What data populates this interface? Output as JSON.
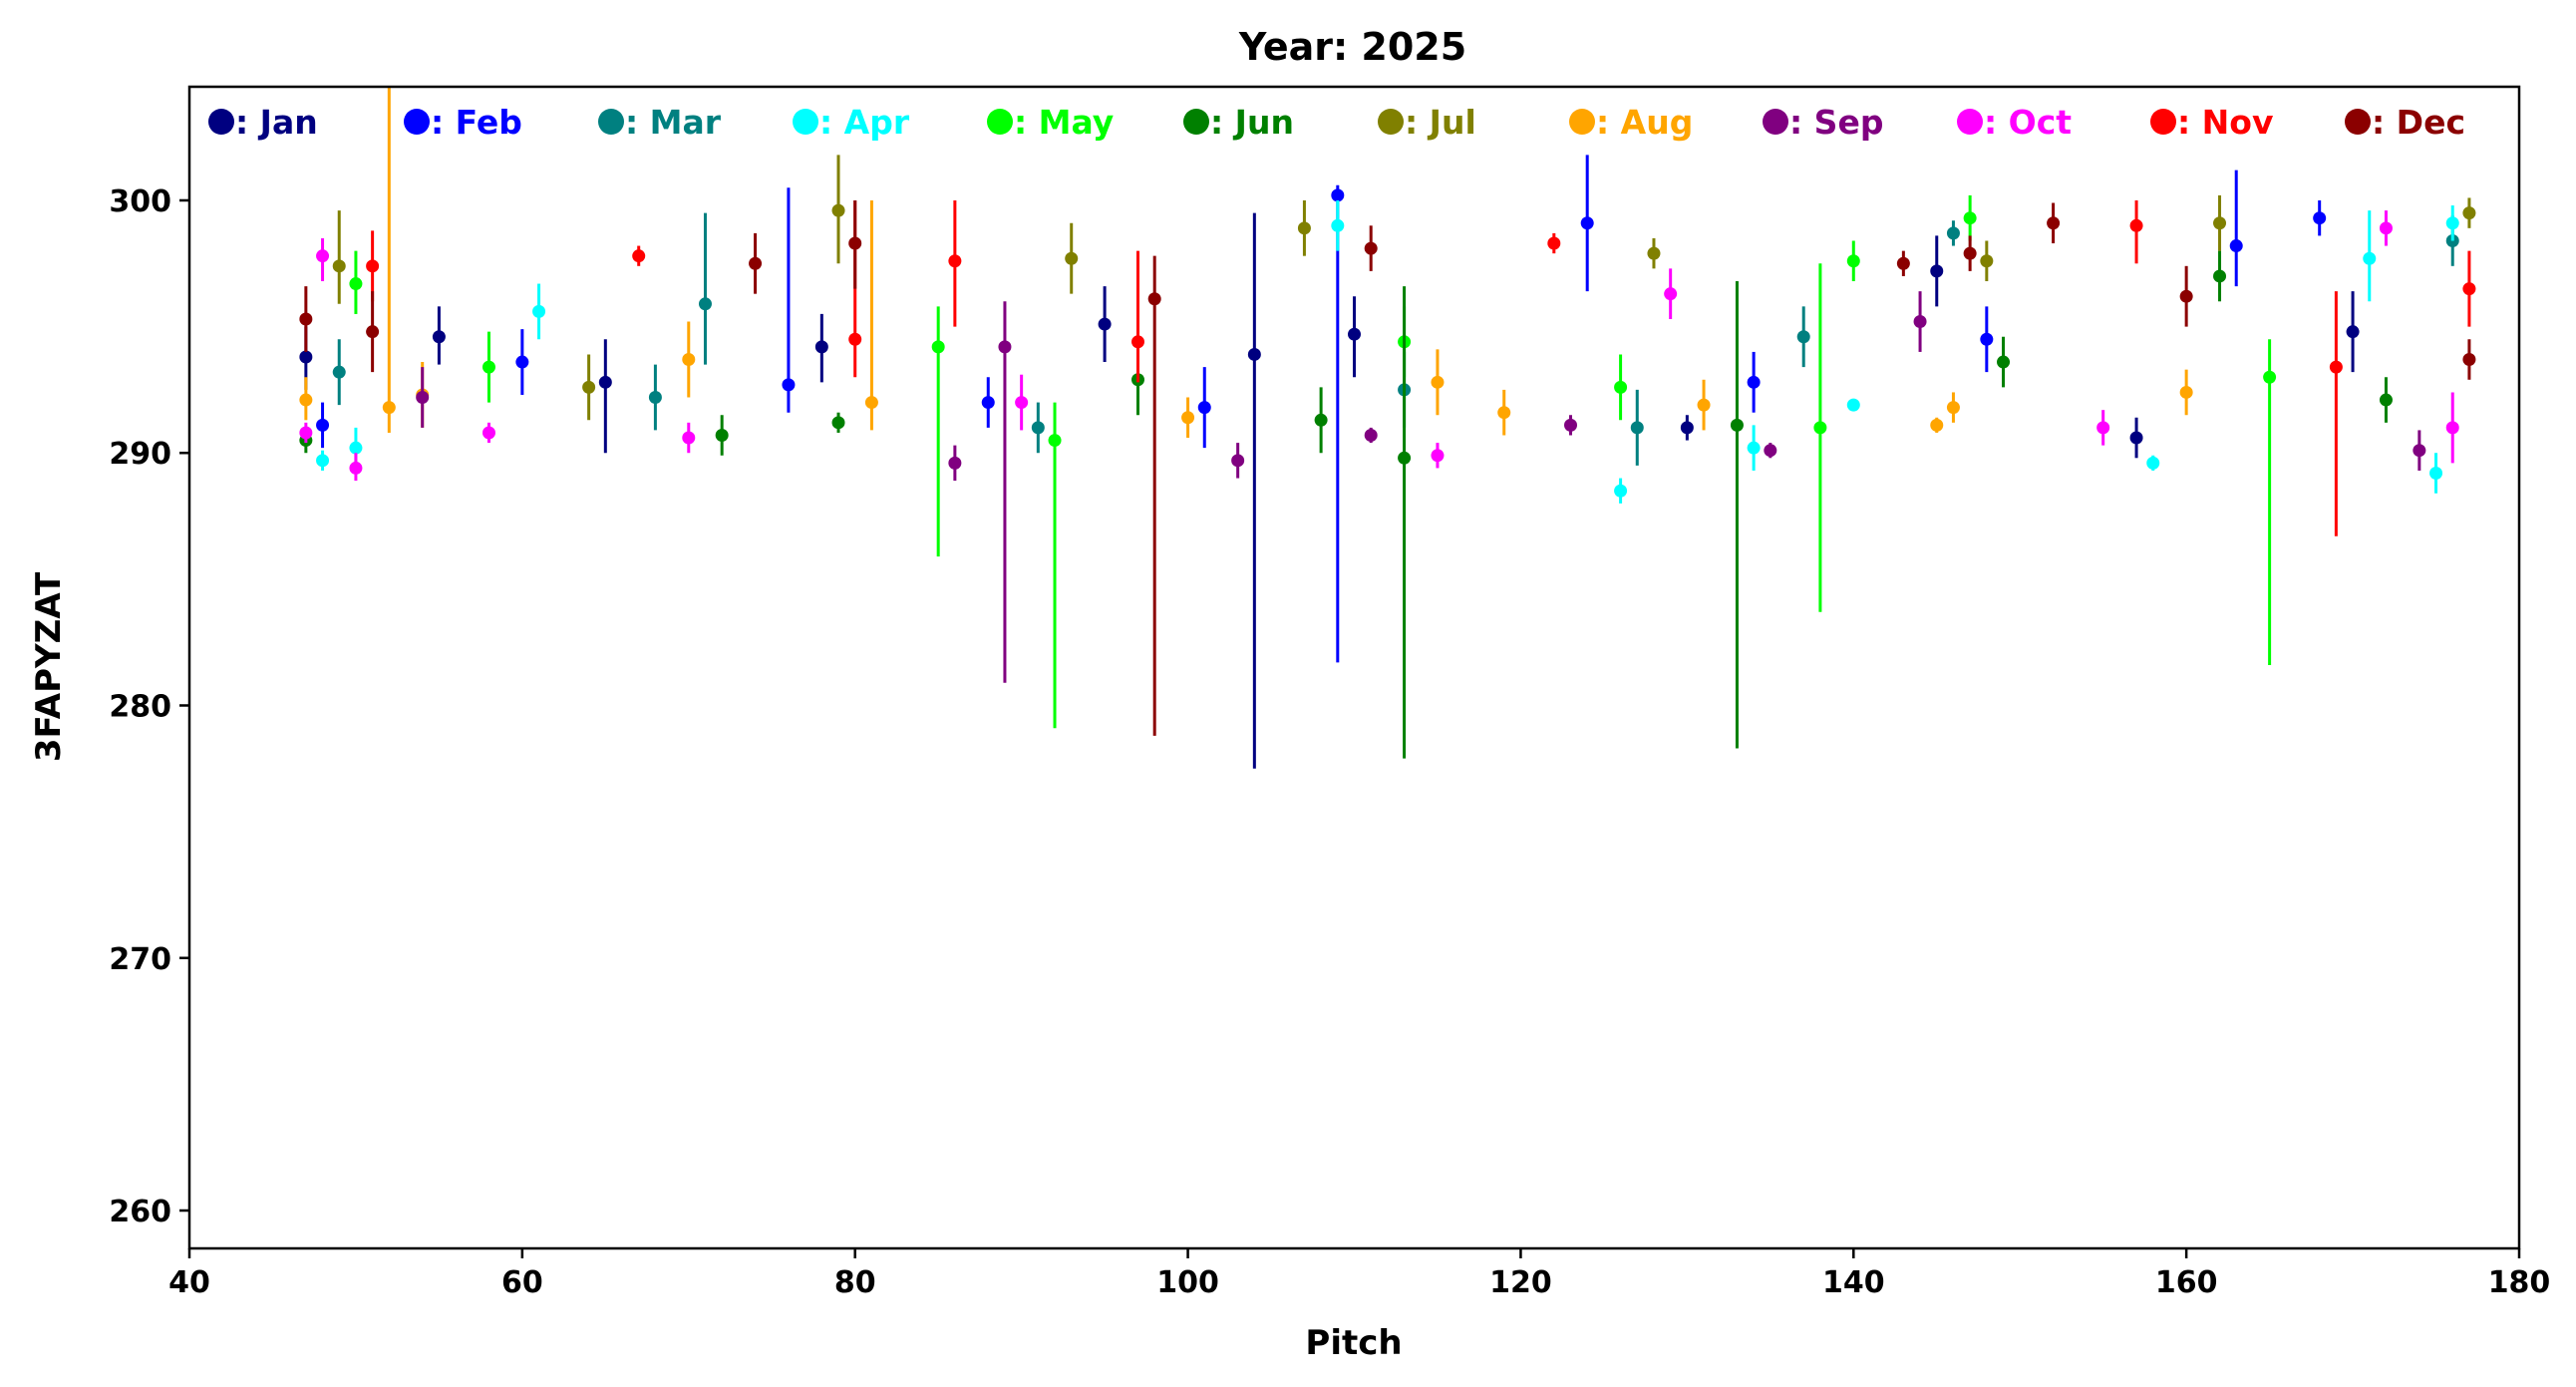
{
  "chart_data": {
    "type": "scatter",
    "title": "Year: 2025",
    "xlabel": "Pitch",
    "ylabel": "3FAPYZAT",
    "xlim": [
      40,
      180
    ],
    "ylim": [
      258.5,
      304.5
    ],
    "xticks": [
      40,
      60,
      80,
      100,
      120,
      140,
      160,
      180
    ],
    "yticks": [
      260,
      270,
      280,
      290,
      300
    ],
    "grid": false,
    "legend_position": "top",
    "error_bars": true,
    "series": [
      {
        "name": ": Jan",
        "color": "#000080",
        "points": [
          {
            "x": 47,
            "y": 293.8,
            "lo": 292.5,
            "hi": 295.0
          },
          {
            "x": 55,
            "y": 294.6,
            "lo": 293.5,
            "hi": 295.8
          },
          {
            "x": 65,
            "y": 292.8,
            "lo": 290.0,
            "hi": 294.5
          },
          {
            "x": 78,
            "y": 294.2,
            "lo": 292.8,
            "hi": 295.5
          },
          {
            "x": 95,
            "y": 295.1,
            "lo": 293.6,
            "hi": 296.6
          },
          {
            "x": 104,
            "y": 293.9,
            "lo": 277.5,
            "hi": 299.5
          },
          {
            "x": 110,
            "y": 294.7,
            "lo": 293.0,
            "hi": 296.2
          },
          {
            "x": 130,
            "y": 291.0,
            "lo": 290.5,
            "hi": 291.5
          },
          {
            "x": 145,
            "y": 297.2,
            "lo": 295.8,
            "hi": 298.6
          },
          {
            "x": 157,
            "y": 290.6,
            "lo": 289.8,
            "hi": 291.4
          },
          {
            "x": 170,
            "y": 294.8,
            "lo": 293.2,
            "hi": 296.4
          }
        ]
      },
      {
        "name": ": Feb",
        "color": "#0000ff",
        "points": [
          {
            "x": 48,
            "y": 291.1,
            "lo": 290.2,
            "hi": 292.0
          },
          {
            "x": 60,
            "y": 293.6,
            "lo": 292.3,
            "hi": 294.9
          },
          {
            "x": 76,
            "y": 292.7,
            "lo": 291.6,
            "hi": 300.5
          },
          {
            "x": 88,
            "y": 292.0,
            "lo": 291.0,
            "hi": 293.0
          },
          {
            "x": 101,
            "y": 291.8,
            "lo": 290.2,
            "hi": 293.4
          },
          {
            "x": 109,
            "y": 300.2,
            "lo": 281.7,
            "hi": 300.6
          },
          {
            "x": 124,
            "y": 299.1,
            "lo": 296.4,
            "hi": 301.8
          },
          {
            "x": 134,
            "y": 292.8,
            "lo": 291.6,
            "hi": 294.0
          },
          {
            "x": 148,
            "y": 294.5,
            "lo": 293.2,
            "hi": 295.8
          },
          {
            "x": 163,
            "y": 298.2,
            "lo": 296.6,
            "hi": 301.2
          },
          {
            "x": 168,
            "y": 299.3,
            "lo": 298.6,
            "hi": 300.0
          }
        ]
      },
      {
        "name": ": Mar",
        "color": "#008080",
        "points": [
          {
            "x": 49,
            "y": 293.2,
            "lo": 291.9,
            "hi": 294.5
          },
          {
            "x": 68,
            "y": 292.2,
            "lo": 290.9,
            "hi": 293.5
          },
          {
            "x": 71,
            "y": 295.9,
            "lo": 293.5,
            "hi": 299.5
          },
          {
            "x": 91,
            "y": 291.0,
            "lo": 290.0,
            "hi": 292.0
          },
          {
            "x": 113,
            "y": 292.5,
            "lo": 291.0,
            "hi": 294.0
          },
          {
            "x": 127,
            "y": 291.0,
            "lo": 289.5,
            "hi": 292.5
          },
          {
            "x": 137,
            "y": 294.6,
            "lo": 293.4,
            "hi": 295.8
          },
          {
            "x": 146,
            "y": 298.7,
            "lo": 298.2,
            "hi": 299.2
          },
          {
            "x": 176,
            "y": 298.4,
            "lo": 297.4,
            "hi": 299.4
          }
        ]
      },
      {
        "name": ": Apr",
        "color": "#00ffff",
        "points": [
          {
            "x": 48,
            "y": 289.7,
            "lo": 289.3,
            "hi": 290.1
          },
          {
            "x": 50,
            "y": 290.2,
            "lo": 289.5,
            "hi": 291.0
          },
          {
            "x": 61,
            "y": 295.6,
            "lo": 294.5,
            "hi": 296.7
          },
          {
            "x": 109,
            "y": 299.0,
            "lo": 298.0,
            "hi": 300.0
          },
          {
            "x": 126,
            "y": 288.5,
            "lo": 288.0,
            "hi": 289.0
          },
          {
            "x": 134,
            "y": 290.2,
            "lo": 289.3,
            "hi": 291.1
          },
          {
            "x": 140,
            "y": 291.9,
            "lo": 291.7,
            "hi": 292.1
          },
          {
            "x": 158,
            "y": 289.6,
            "lo": 289.3,
            "hi": 289.9
          },
          {
            "x": 171,
            "y": 297.7,
            "lo": 296.0,
            "hi": 299.6
          },
          {
            "x": 175,
            "y": 289.2,
            "lo": 288.4,
            "hi": 290.0
          },
          {
            "x": 176,
            "y": 299.1,
            "lo": 298.4,
            "hi": 299.8
          }
        ]
      },
      {
        "name": ": May",
        "color": "#00ff00",
        "points": [
          {
            "x": 50,
            "y": 296.7,
            "lo": 295.5,
            "hi": 298.0
          },
          {
            "x": 58,
            "y": 293.4,
            "lo": 292.0,
            "hi": 294.8
          },
          {
            "x": 85,
            "y": 294.2,
            "lo": 285.9,
            "hi": 295.8
          },
          {
            "x": 92,
            "y": 290.5,
            "lo": 279.1,
            "hi": 292.0
          },
          {
            "x": 113,
            "y": 294.4,
            "lo": 293.0,
            "hi": 295.8
          },
          {
            "x": 126,
            "y": 292.6,
            "lo": 291.3,
            "hi": 293.9
          },
          {
            "x": 138,
            "y": 291.0,
            "lo": 283.7,
            "hi": 297.5
          },
          {
            "x": 140,
            "y": 297.6,
            "lo": 296.8,
            "hi": 298.4
          },
          {
            "x": 147,
            "y": 299.3,
            "lo": 298.4,
            "hi": 300.2
          },
          {
            "x": 165,
            "y": 293.0,
            "lo": 281.6,
            "hi": 294.5
          }
        ]
      },
      {
        "name": ": Jun",
        "color": "#008000",
        "points": [
          {
            "x": 47,
            "y": 290.5,
            "lo": 290.0,
            "hi": 291.0
          },
          {
            "x": 72,
            "y": 290.7,
            "lo": 289.9,
            "hi": 291.5
          },
          {
            "x": 79,
            "y": 291.2,
            "lo": 290.8,
            "hi": 291.6
          },
          {
            "x": 97,
            "y": 292.9,
            "lo": 291.5,
            "hi": 294.3
          },
          {
            "x": 108,
            "y": 291.3,
            "lo": 290.0,
            "hi": 292.6
          },
          {
            "x": 113,
            "y": 289.8,
            "lo": 277.9,
            "hi": 296.6
          },
          {
            "x": 133,
            "y": 291.1,
            "lo": 278.3,
            "hi": 296.8
          },
          {
            "x": 149,
            "y": 293.6,
            "lo": 292.6,
            "hi": 294.6
          },
          {
            "x": 162,
            "y": 297.0,
            "lo": 296.0,
            "hi": 298.0
          },
          {
            "x": 172,
            "y": 292.1,
            "lo": 291.2,
            "hi": 293.0
          }
        ]
      },
      {
        "name": ": Jul",
        "color": "#808000",
        "points": [
          {
            "x": 49,
            "y": 297.4,
            "lo": 295.9,
            "hi": 299.6
          },
          {
            "x": 64,
            "y": 292.6,
            "lo": 291.3,
            "hi": 293.9
          },
          {
            "x": 79,
            "y": 299.6,
            "lo": 297.5,
            "hi": 301.8
          },
          {
            "x": 93,
            "y": 297.7,
            "lo": 296.3,
            "hi": 299.1
          },
          {
            "x": 107,
            "y": 298.9,
            "lo": 297.8,
            "hi": 300.0
          },
          {
            "x": 128,
            "y": 297.9,
            "lo": 297.3,
            "hi": 298.5
          },
          {
            "x": 148,
            "y": 297.6,
            "lo": 296.8,
            "hi": 298.4
          },
          {
            "x": 162,
            "y": 299.1,
            "lo": 298.0,
            "hi": 300.2
          },
          {
            "x": 177,
            "y": 299.5,
            "lo": 298.9,
            "hi": 300.1
          }
        ]
      },
      {
        "name": ": Aug",
        "color": "#ffa500",
        "points": [
          {
            "x": 47,
            "y": 292.1,
            "lo": 291.3,
            "hi": 293.0
          },
          {
            "x": 52,
            "y": 291.8,
            "lo": 290.8,
            "hi": 304.5
          },
          {
            "x": 54,
            "y": 292.3,
            "lo": 291.0,
            "hi": 293.6
          },
          {
            "x": 70,
            "y": 293.7,
            "lo": 292.2,
            "hi": 295.2
          },
          {
            "x": 81,
            "y": 292.0,
            "lo": 290.9,
            "hi": 300.0
          },
          {
            "x": 100,
            "y": 291.4,
            "lo": 290.6,
            "hi": 292.2
          },
          {
            "x": 115,
            "y": 292.8,
            "lo": 291.5,
            "hi": 294.1
          },
          {
            "x": 119,
            "y": 291.6,
            "lo": 290.7,
            "hi": 292.5
          },
          {
            "x": 131,
            "y": 291.9,
            "lo": 290.9,
            "hi": 292.9
          },
          {
            "x": 145,
            "y": 291.1,
            "lo": 290.8,
            "hi": 291.4
          },
          {
            "x": 146,
            "y": 291.8,
            "lo": 291.2,
            "hi": 292.4
          },
          {
            "x": 160,
            "y": 292.4,
            "lo": 291.5,
            "hi": 293.3
          }
        ]
      },
      {
        "name": ": Sep",
        "color": "#800080",
        "points": [
          {
            "x": 54,
            "y": 292.2,
            "lo": 291.0,
            "hi": 293.4
          },
          {
            "x": 86,
            "y": 289.6,
            "lo": 288.9,
            "hi": 290.3
          },
          {
            "x": 89,
            "y": 294.2,
            "lo": 280.9,
            "hi": 296.0
          },
          {
            "x": 103,
            "y": 289.7,
            "lo": 289.0,
            "hi": 290.4
          },
          {
            "x": 111,
            "y": 290.7,
            "lo": 290.4,
            "hi": 291.0
          },
          {
            "x": 123,
            "y": 291.1,
            "lo": 290.7,
            "hi": 291.5
          },
          {
            "x": 135,
            "y": 290.1,
            "lo": 289.8,
            "hi": 290.4
          },
          {
            "x": 144,
            "y": 295.2,
            "lo": 294.0,
            "hi": 296.4
          },
          {
            "x": 174,
            "y": 290.1,
            "lo": 289.3,
            "hi": 290.9
          }
        ]
      },
      {
        "name": ": Oct",
        "color": "#ff00ff",
        "points": [
          {
            "x": 47,
            "y": 290.8,
            "lo": 290.4,
            "hi": 291.2
          },
          {
            "x": 48,
            "y": 297.8,
            "lo": 296.8,
            "hi": 298.5
          },
          {
            "x": 50,
            "y": 289.4,
            "lo": 288.9,
            "hi": 290.0
          },
          {
            "x": 58,
            "y": 290.8,
            "lo": 290.4,
            "hi": 291.2
          },
          {
            "x": 70,
            "y": 290.6,
            "lo": 290.0,
            "hi": 291.2
          },
          {
            "x": 90,
            "y": 292.0,
            "lo": 290.9,
            "hi": 293.1
          },
          {
            "x": 115,
            "y": 289.9,
            "lo": 289.4,
            "hi": 290.4
          },
          {
            "x": 129,
            "y": 296.3,
            "lo": 295.3,
            "hi": 297.3
          },
          {
            "x": 155,
            "y": 291.0,
            "lo": 290.3,
            "hi": 291.7
          },
          {
            "x": 172,
            "y": 298.9,
            "lo": 298.2,
            "hi": 299.6
          },
          {
            "x": 176,
            "y": 291.0,
            "lo": 289.6,
            "hi": 292.4
          }
        ]
      },
      {
        "name": ": Nov",
        "color": "#ff0000",
        "points": [
          {
            "x": 51,
            "y": 297.4,
            "lo": 296.0,
            "hi": 298.8
          },
          {
            "x": 67,
            "y": 297.8,
            "lo": 297.4,
            "hi": 298.2
          },
          {
            "x": 80,
            "y": 294.5,
            "lo": 293.0,
            "hi": 300.0
          },
          {
            "x": 86,
            "y": 297.6,
            "lo": 295.0,
            "hi": 300.0
          },
          {
            "x": 97,
            "y": 294.4,
            "lo": 292.8,
            "hi": 298.0
          },
          {
            "x": 122,
            "y": 298.3,
            "lo": 297.9,
            "hi": 298.7
          },
          {
            "x": 157,
            "y": 299.0,
            "lo": 297.5,
            "hi": 300.0
          },
          {
            "x": 169,
            "y": 293.4,
            "lo": 286.7,
            "hi": 296.4
          },
          {
            "x": 177,
            "y": 296.5,
            "lo": 295.0,
            "hi": 298.0
          }
        ]
      },
      {
        "name": ": Dec",
        "color": "#8b0000",
        "points": [
          {
            "x": 47,
            "y": 295.3,
            "lo": 294.0,
            "hi": 296.6
          },
          {
            "x": 51,
            "y": 294.8,
            "lo": 293.2,
            "hi": 296.4
          },
          {
            "x": 74,
            "y": 297.5,
            "lo": 296.3,
            "hi": 298.7
          },
          {
            "x": 80,
            "y": 298.3,
            "lo": 296.5,
            "hi": 300.0
          },
          {
            "x": 98,
            "y": 296.1,
            "lo": 278.8,
            "hi": 297.8
          },
          {
            "x": 111,
            "y": 298.1,
            "lo": 297.2,
            "hi": 299.0
          },
          {
            "x": 143,
            "y": 297.5,
            "lo": 297.0,
            "hi": 298.0
          },
          {
            "x": 147,
            "y": 297.9,
            "lo": 297.2,
            "hi": 298.6
          },
          {
            "x": 152,
            "y": 299.1,
            "lo": 298.3,
            "hi": 299.9
          },
          {
            "x": 160,
            "y": 296.2,
            "lo": 295.0,
            "hi": 297.4
          },
          {
            "x": 177,
            "y": 293.7,
            "lo": 292.9,
            "hi": 294.5
          }
        ]
      }
    ]
  }
}
